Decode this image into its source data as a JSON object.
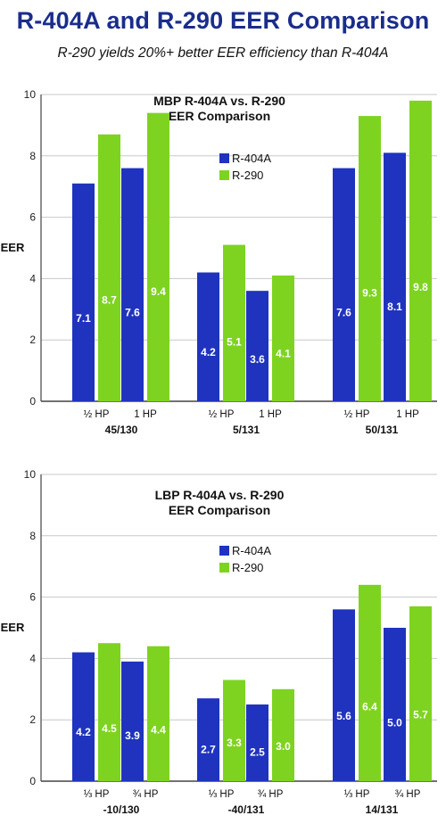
{
  "header": {
    "title": "R-404A and R-290 EER Comparison",
    "subtitle": "R-290 yields 20%+ better EER efficiency than R-404A"
  },
  "colors": {
    "r404a": "#1f33bf",
    "r290": "#7ed321",
    "grid": "#c8c8c8",
    "axis": "#444444"
  },
  "chart_data": [
    {
      "type": "bar",
      "title": "MBP R-404A vs. R-290\nEER Comparison",
      "ylabel": "EER",
      "ylim": [
        0,
        10
      ],
      "yticks": [
        0,
        2,
        4,
        6,
        8,
        10
      ],
      "grid": true,
      "legend_position": "center",
      "groups": [
        "45/130",
        "5/131",
        "50/131"
      ],
      "categories": [
        "½ HP",
        "1 HP",
        "½ HP",
        "1 HP",
        "½ HP",
        "1 HP"
      ],
      "category_group": [
        0,
        0,
        1,
        1,
        2,
        2
      ],
      "series": [
        {
          "name": "R-404A",
          "values": [
            7.1,
            7.6,
            4.2,
            3.6,
            7.6,
            8.1
          ]
        },
        {
          "name": "R-290",
          "values": [
            8.7,
            9.4,
            5.1,
            4.1,
            9.3,
            9.8
          ]
        }
      ]
    },
    {
      "type": "bar",
      "title": "LBP R-404A vs. R-290\nEER Comparison",
      "ylabel": "EER",
      "ylim": [
        0,
        10
      ],
      "yticks": [
        0,
        2,
        4,
        6,
        8,
        10
      ],
      "grid": true,
      "legend_position": "center",
      "groups": [
        "-10/130",
        "-40/131",
        "14/131"
      ],
      "categories": [
        "⅓ HP",
        "¾ HP",
        "⅓ HP",
        "¾ HP",
        "⅓ HP",
        "¾ HP"
      ],
      "category_group": [
        0,
        0,
        1,
        1,
        2,
        2
      ],
      "series": [
        {
          "name": "R-404A",
          "values": [
            4.2,
            3.9,
            2.7,
            2.5,
            5.6,
            5.0
          ]
        },
        {
          "name": "R-290",
          "values": [
            4.5,
            4.4,
            3.3,
            3.0,
            6.4,
            5.7
          ]
        }
      ]
    }
  ]
}
